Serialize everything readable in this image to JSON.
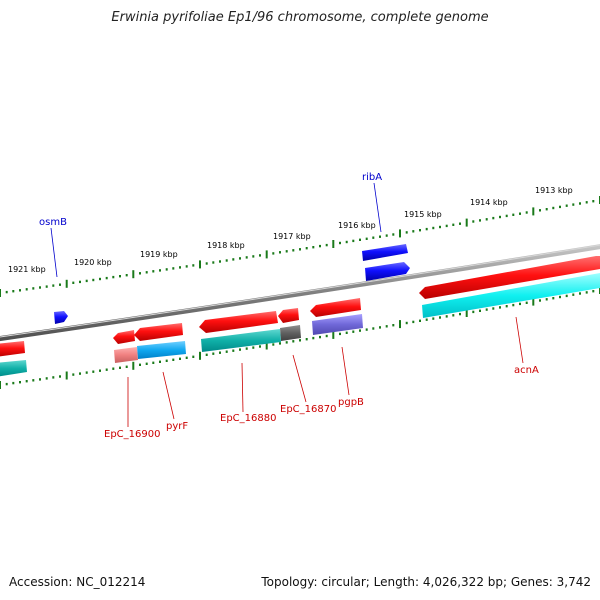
{
  "title": "Erwinia pyrifoliae Ep1/96 chromosome, complete genome",
  "footer": {
    "accession": "Accession: NC_012214",
    "topology": "Topology: circular; Length: 4,026,322 bp; Genes: 3,742"
  },
  "colors": {
    "backbone": "#808080",
    "tick": "#1a7a1a",
    "forward_gene": "#e00000",
    "reverse_gene": "#0000e0",
    "label_red": "#cc0000",
    "label_blue": "#0000cc"
  },
  "kbp_ticks": [
    "1921 kbp",
    "1920 kbp",
    "1919 kbp",
    "1918 kbp",
    "1917 kbp",
    "1916 kbp",
    "1915 kbp",
    "1914 kbp",
    "1913 kbp"
  ],
  "gene_labels": [
    {
      "name": "osmB",
      "strand": "reverse"
    },
    {
      "name": "ribA",
      "strand": "reverse"
    },
    {
      "name": "EpC_16900",
      "strand": "forward"
    },
    {
      "name": "pyrF",
      "strand": "forward"
    },
    {
      "name": "EpC_16880",
      "strand": "forward"
    },
    {
      "name": "EpC_16870",
      "strand": "forward"
    },
    {
      "name": "pgpB",
      "strand": "forward"
    },
    {
      "name": "acnA",
      "strand": "forward"
    }
  ]
}
